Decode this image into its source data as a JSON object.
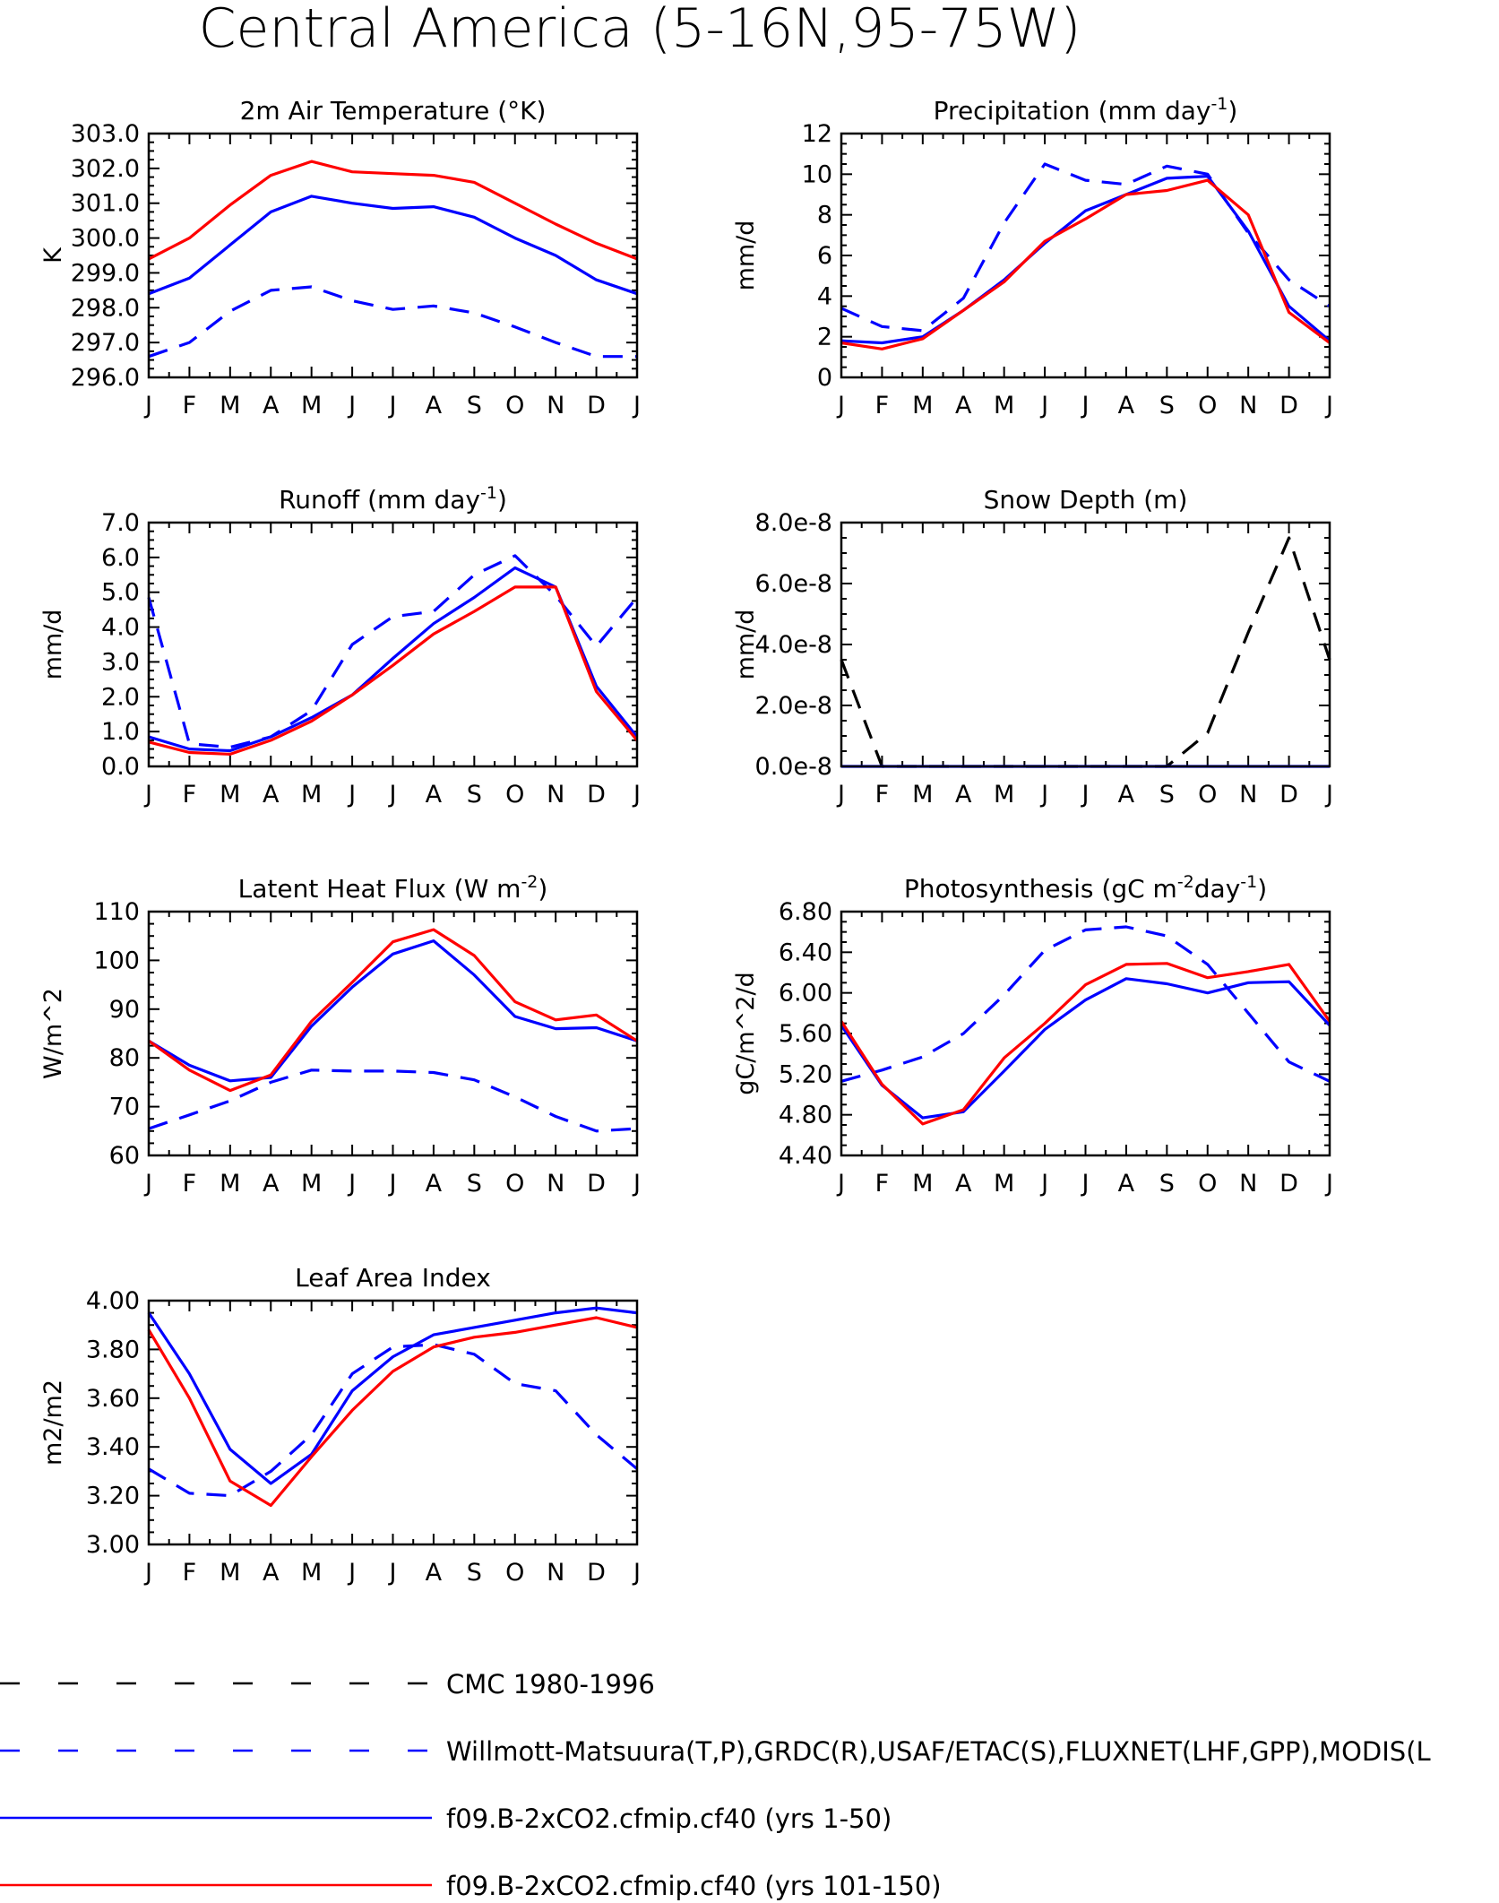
{
  "figure_title": "Central America (5-16N,95-75W)",
  "colors": {
    "cmc": "#000000",
    "obs": "#0000ff",
    "run1": "#0000ff",
    "run2": "#ff0000"
  },
  "legend": [
    {
      "key": "cmc",
      "label": "CMC 1980-1996",
      "color": "#000000",
      "dash": true
    },
    {
      "key": "obs",
      "label": "Willmott-Matsuura(T,P),GRDC(R),USAF/ETAC(S),FLUXNET(LHF,GPP),MODIS(L",
      "color": "#0000ff",
      "dash": true
    },
    {
      "key": "run1",
      "label": "f09.B-2xCO2.cfmip.cf40 (yrs 1-50)",
      "color": "#0000ff",
      "dash": false
    },
    {
      "key": "run2",
      "label": "f09.B-2xCO2.cfmip.cf40 (yrs 101-150)",
      "color": "#ff0000",
      "dash": false
    }
  ],
  "chart_data": [
    {
      "type": "line",
      "title": "2m Air Temperature (°K)",
      "ylabel": "K",
      "x": [
        "J",
        "F",
        "M",
        "A",
        "M",
        "J",
        "J",
        "A",
        "S",
        "O",
        "N",
        "D",
        "J"
      ],
      "ylim": [
        296.0,
        303.0
      ],
      "yticks": [
        "296.0",
        "297.0",
        "298.0",
        "299.0",
        "300.0",
        "301.0",
        "302.0",
        "303.0"
      ],
      "series": [
        {
          "key": "obs",
          "values": [
            296.6,
            297.0,
            297.9,
            298.5,
            298.6,
            298.2,
            297.95,
            298.05,
            297.85,
            297.45,
            297.0,
            296.6,
            296.6
          ]
        },
        {
          "key": "run1",
          "values": [
            298.4,
            298.85,
            299.8,
            300.75,
            301.2,
            301.0,
            300.85,
            300.9,
            300.6,
            300.0,
            299.5,
            298.8,
            298.4
          ]
        },
        {
          "key": "run2",
          "values": [
            299.4,
            300.0,
            300.95,
            301.8,
            302.2,
            301.9,
            301.85,
            301.8,
            301.6,
            301.0,
            300.4,
            299.85,
            299.4
          ]
        }
      ]
    },
    {
      "type": "line",
      "title": "Precipitation (mm day",
      "title_sup": "-1",
      "title_end": ")",
      "ylabel": "mm/d",
      "x": [
        "J",
        "F",
        "M",
        "A",
        "M",
        "J",
        "J",
        "A",
        "S",
        "O",
        "N",
        "D",
        "J"
      ],
      "ylim": [
        0,
        12
      ],
      "yticks": [
        "0",
        "2",
        "4",
        "6",
        "8",
        "10",
        "12"
      ],
      "series": [
        {
          "key": "obs",
          "values": [
            3.4,
            2.5,
            2.3,
            3.9,
            7.6,
            10.5,
            9.7,
            9.5,
            10.4,
            10.0,
            7.1,
            4.8,
            3.5
          ]
        },
        {
          "key": "run1",
          "values": [
            1.8,
            1.7,
            2.0,
            3.3,
            4.8,
            6.6,
            8.2,
            9.0,
            9.8,
            9.9,
            7.2,
            3.5,
            1.8
          ]
        },
        {
          "key": "run2",
          "values": [
            1.7,
            1.4,
            1.9,
            3.3,
            4.7,
            6.7,
            7.8,
            9.0,
            9.2,
            9.7,
            8.0,
            3.2,
            1.7
          ]
        }
      ]
    },
    {
      "type": "line",
      "title": "Runoff (mm day",
      "title_sup": "-1",
      "title_end": ")",
      "ylabel": "mm/d",
      "x": [
        "J",
        "F",
        "M",
        "A",
        "M",
        "J",
        "J",
        "A",
        "S",
        "O",
        "N",
        "D",
        "J"
      ],
      "ylim": [
        0,
        7
      ],
      "yticks": [
        "0.0",
        "1.0",
        "2.0",
        "3.0",
        "4.0",
        "5.0",
        "6.0",
        "7.0"
      ],
      "series": [
        {
          "key": "obs",
          "values": [
            4.85,
            0.65,
            0.55,
            0.85,
            1.6,
            3.5,
            4.3,
            4.45,
            5.5,
            6.05,
            4.9,
            3.45,
            4.85
          ]
        },
        {
          "key": "run1",
          "values": [
            0.85,
            0.5,
            0.45,
            0.85,
            1.4,
            2.05,
            3.1,
            4.1,
            4.85,
            5.7,
            5.15,
            2.3,
            0.85
          ]
        },
        {
          "key": "run2",
          "values": [
            0.7,
            0.4,
            0.35,
            0.75,
            1.3,
            2.05,
            2.9,
            3.8,
            4.45,
            5.15,
            5.15,
            2.15,
            0.75
          ]
        }
      ]
    },
    {
      "type": "line",
      "title": "Snow Depth (m)",
      "ylabel": "mm/d",
      "x": [
        "J",
        "F",
        "M",
        "A",
        "M",
        "J",
        "J",
        "A",
        "S",
        "O",
        "N",
        "D",
        "J"
      ],
      "ylim": [
        0,
        8
      ],
      "yticks": [
        "0.0e-8",
        "2.0e-8",
        "4.0e-8",
        "6.0e-8",
        "8.0e-8"
      ],
      "series": [
        {
          "key": "cmc",
          "values": [
            3.5,
            0,
            0,
            0,
            0,
            0,
            0,
            0,
            0,
            1.1,
            4.4,
            7.5,
            3.5
          ]
        },
        {
          "key": "run1",
          "values": [
            0,
            0,
            0,
            0,
            0,
            0,
            0,
            0,
            0,
            0,
            0,
            0,
            0
          ]
        }
      ]
    },
    {
      "type": "line",
      "title": "Latent Heat Flux (W m",
      "title_sup": "-2",
      "title_end": ")",
      "ylabel": "W/m^2",
      "x": [
        "J",
        "F",
        "M",
        "A",
        "M",
        "J",
        "J",
        "A",
        "S",
        "O",
        "N",
        "D",
        "J"
      ],
      "ylim": [
        60,
        110
      ],
      "yticks": [
        "60",
        "70",
        "80",
        "90",
        "100",
        "110"
      ],
      "series": [
        {
          "key": "obs",
          "values": [
            65.5,
            68.3,
            71.2,
            75.0,
            77.5,
            77.3,
            77.3,
            77.0,
            75.5,
            72.0,
            68.0,
            65.0,
            65.5
          ]
        },
        {
          "key": "run1",
          "values": [
            83.5,
            78.5,
            75.3,
            76.0,
            86.5,
            94.5,
            101.3,
            104.0,
            97.0,
            88.5,
            86.0,
            86.2,
            83.5
          ]
        },
        {
          "key": "run2",
          "values": [
            83.5,
            77.5,
            73.3,
            76.5,
            87.5,
            95.5,
            103.8,
            106.3,
            101.0,
            91.5,
            87.8,
            88.8,
            83.5
          ]
        }
      ]
    },
    {
      "type": "line",
      "title": "Photosynthesis (gC m",
      "title_sup": "-2",
      "title_mid": "day",
      "title_sup2": "-1",
      "title_end": ")",
      "ylabel": "gC/m^2/d",
      "x": [
        "J",
        "F",
        "M",
        "A",
        "M",
        "J",
        "J",
        "A",
        "S",
        "O",
        "N",
        "D",
        "J"
      ],
      "ylim": [
        4.4,
        6.8
      ],
      "yticks": [
        "4.40",
        "4.80",
        "5.20",
        "5.60",
        "6.00",
        "6.40",
        "6.80"
      ],
      "series": [
        {
          "key": "obs",
          "values": [
            5.13,
            5.24,
            5.37,
            5.6,
            5.98,
            6.42,
            6.62,
            6.65,
            6.56,
            6.28,
            5.8,
            5.32,
            5.13
          ]
        },
        {
          "key": "run1",
          "values": [
            5.68,
            5.09,
            4.77,
            4.83,
            5.23,
            5.64,
            5.93,
            6.14,
            6.09,
            6.0,
            6.1,
            6.11,
            5.68
          ]
        },
        {
          "key": "run2",
          "values": [
            5.72,
            5.1,
            4.71,
            4.85,
            5.36,
            5.7,
            6.08,
            6.28,
            6.29,
            6.15,
            6.21,
            6.28,
            5.72
          ]
        }
      ]
    },
    {
      "type": "line",
      "title": "Leaf Area Index",
      "ylabel": "m2/m2",
      "x": [
        "J",
        "F",
        "M",
        "A",
        "M",
        "J",
        "J",
        "A",
        "S",
        "O",
        "N",
        "D",
        "J"
      ],
      "ylim": [
        3.0,
        4.0
      ],
      "yticks": [
        "3.00",
        "3.20",
        "3.40",
        "3.60",
        "3.80",
        "4.00"
      ],
      "series": [
        {
          "key": "obs",
          "values": [
            3.31,
            3.21,
            3.2,
            3.3,
            3.45,
            3.7,
            3.81,
            3.82,
            3.78,
            3.66,
            3.63,
            3.45,
            3.31
          ]
        },
        {
          "key": "run1",
          "values": [
            3.95,
            3.7,
            3.39,
            3.25,
            3.37,
            3.63,
            3.77,
            3.86,
            3.89,
            3.92,
            3.95,
            3.97,
            3.95
          ]
        },
        {
          "key": "run2",
          "values": [
            3.88,
            3.6,
            3.26,
            3.16,
            3.36,
            3.55,
            3.71,
            3.81,
            3.85,
            3.87,
            3.9,
            3.93,
            3.89
          ]
        }
      ]
    }
  ]
}
